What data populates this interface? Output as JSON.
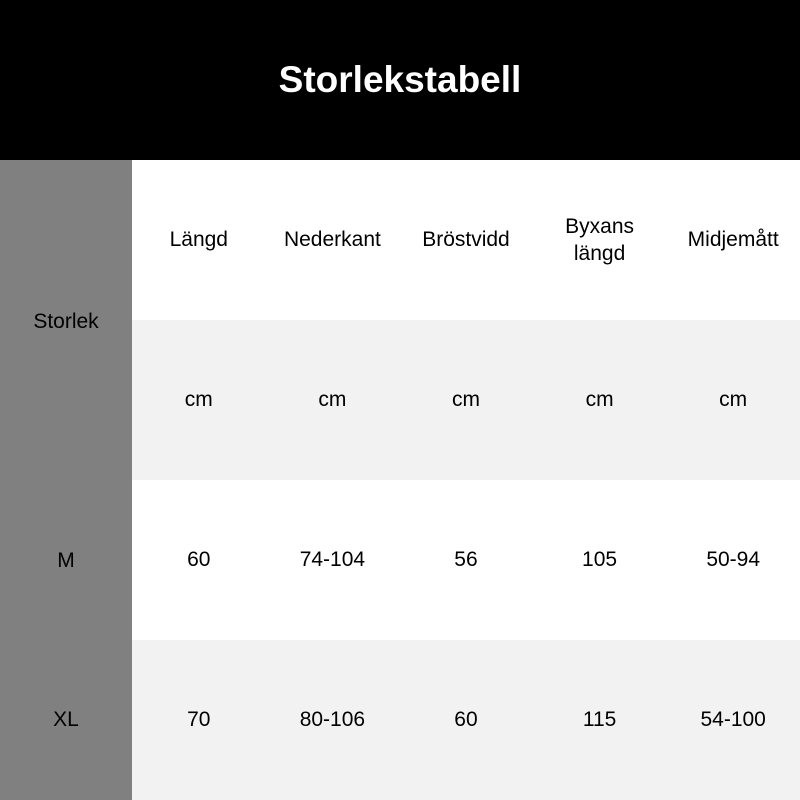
{
  "title": "Storlekstabell",
  "size_column_header": "Storlek",
  "columns": [
    "Längd",
    "Nederkant",
    "Bröstvidd",
    "Byxans längd",
    "Midjemått"
  ],
  "units": [
    "cm",
    "cm",
    "cm",
    "cm",
    "cm"
  ],
  "rows": [
    {
      "size": "M",
      "values": [
        "60",
        "74-104",
        "56",
        "105",
        "50-94"
      ]
    },
    {
      "size": "XL",
      "values": [
        "70",
        "80-106",
        "60",
        "115",
        "54-100"
      ]
    }
  ],
  "colors": {
    "header_bg": "#000000",
    "side_bg": "#808080",
    "alt_row_bg": "#f2f2f2"
  }
}
